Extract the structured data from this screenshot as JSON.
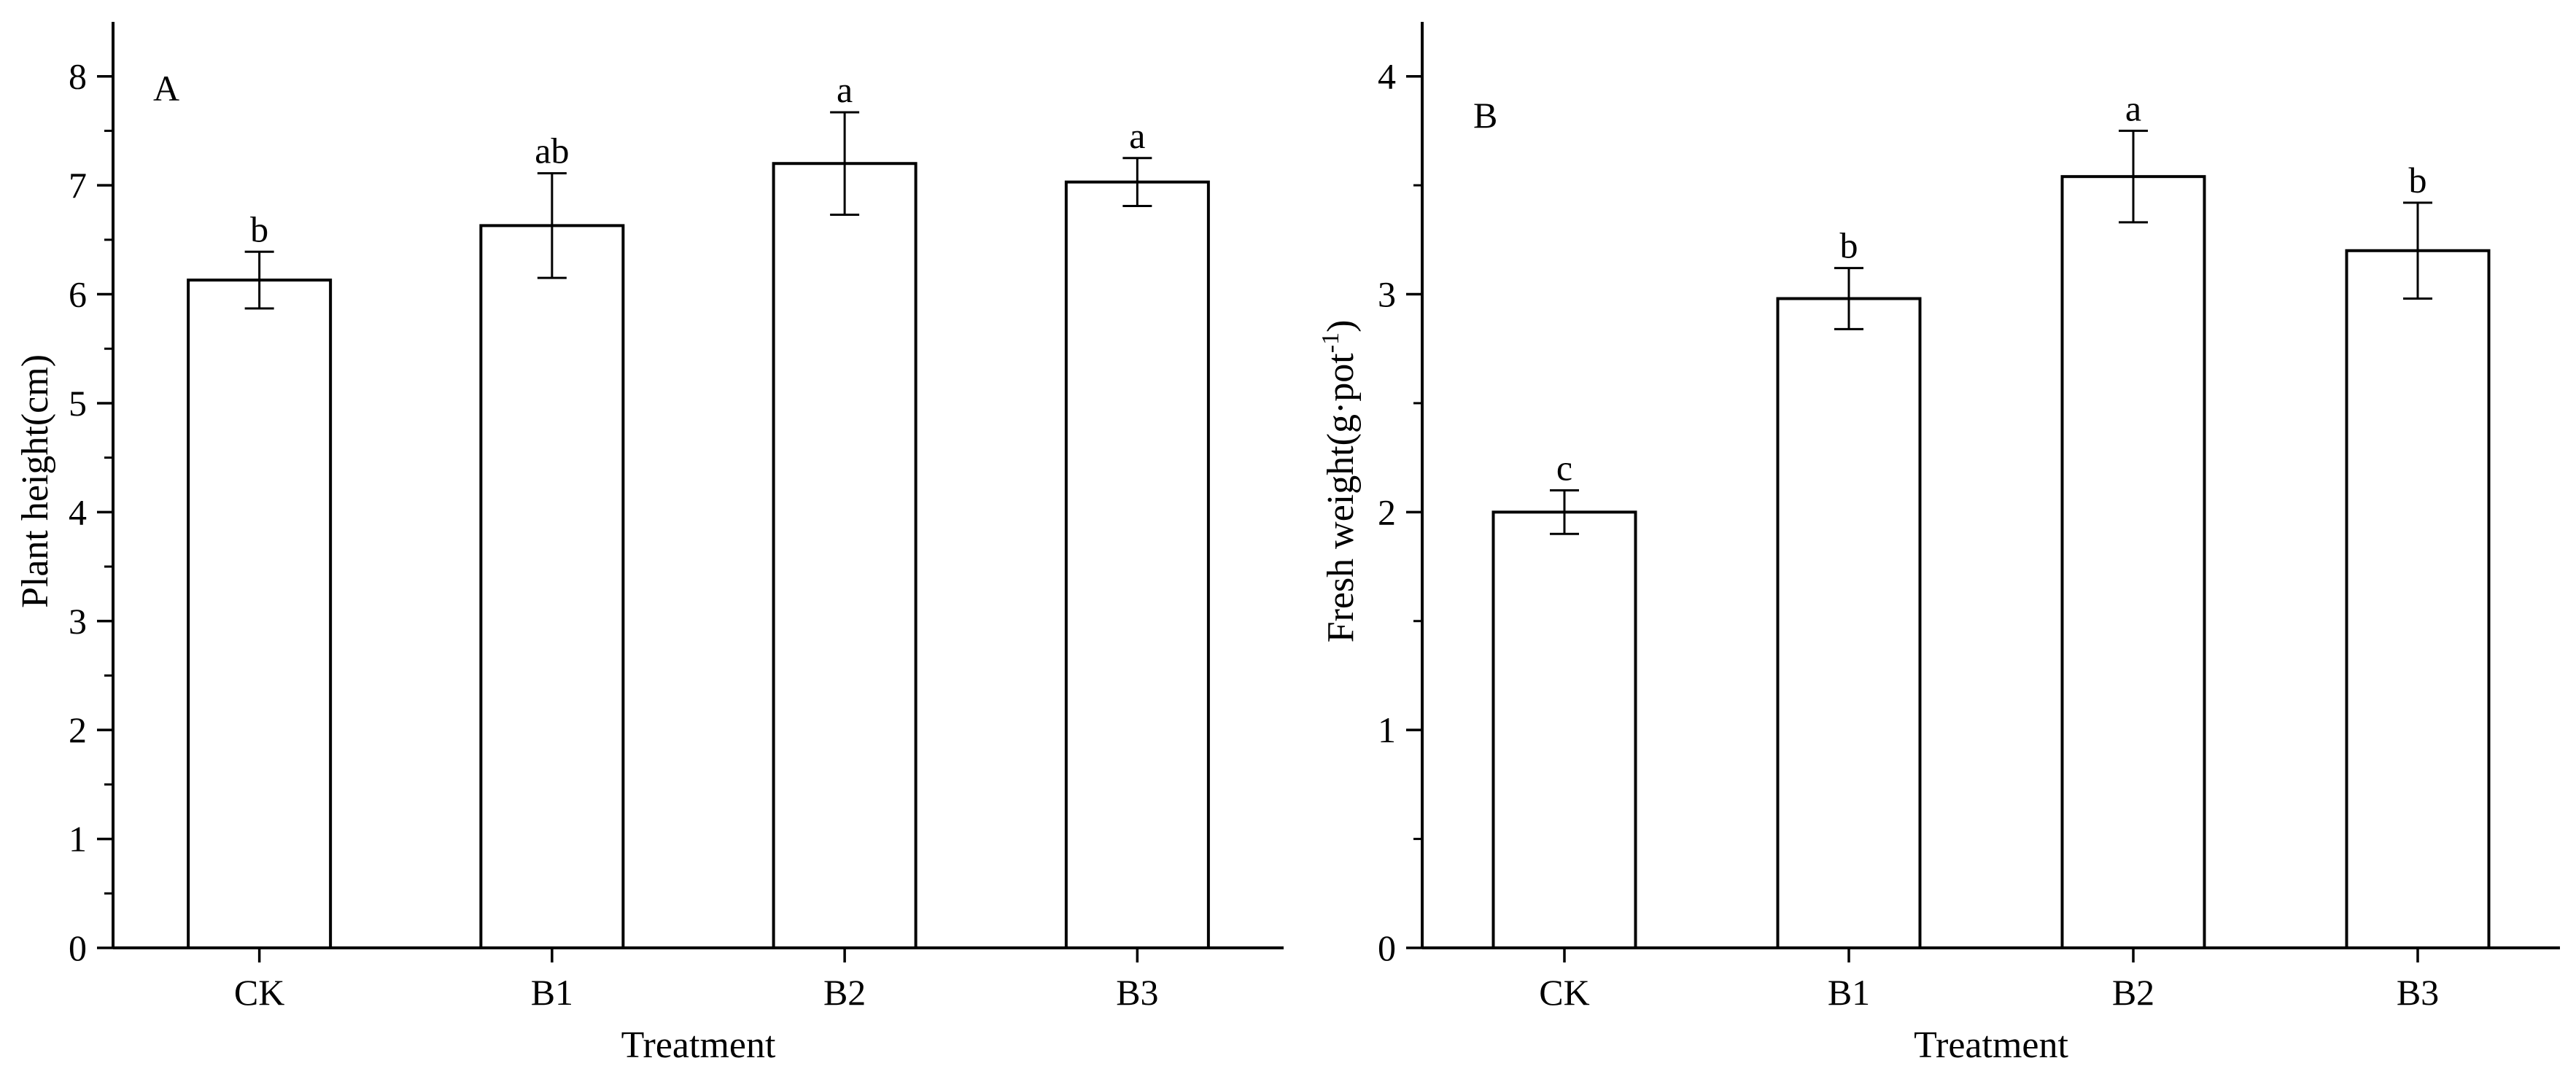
{
  "chart_data": [
    {
      "type": "bar",
      "panel_label": "A",
      "categories": [
        "CK",
        "B1",
        "B2",
        "B3"
      ],
      "values": [
        6.13,
        6.63,
        7.2,
        7.03
      ],
      "errors": [
        0.26,
        0.48,
        0.47,
        0.22
      ],
      "significance": [
        "b",
        "ab",
        "a",
        "a"
      ],
      "xlabel": "Treatment",
      "ylabel": "Plant height(cm)",
      "ylim": [
        0,
        8.5
      ],
      "yticks": [
        0,
        1,
        2,
        3,
        4,
        5,
        6,
        7,
        8
      ],
      "grid": false,
      "bar_color": "#ffffff",
      "edge_color": "#000000"
    },
    {
      "type": "bar",
      "panel_label": "B",
      "categories": [
        "CK",
        "B1",
        "B2",
        "B3"
      ],
      "values": [
        2.0,
        2.98,
        3.54,
        3.2
      ],
      "errors": [
        0.1,
        0.14,
        0.21,
        0.22
      ],
      "significance": [
        "c",
        "b",
        "a",
        "b"
      ],
      "xlabel": "Treatment",
      "ylabel": "Fresh weight(g·pot",
      "ylabel_sup": "-1",
      "ylabel_close": ")",
      "ylim": [
        0,
        4.25
      ],
      "yticks": [
        0,
        1,
        2,
        3,
        4
      ],
      "grid": false,
      "bar_color": "#ffffff",
      "edge_color": "#000000"
    }
  ]
}
